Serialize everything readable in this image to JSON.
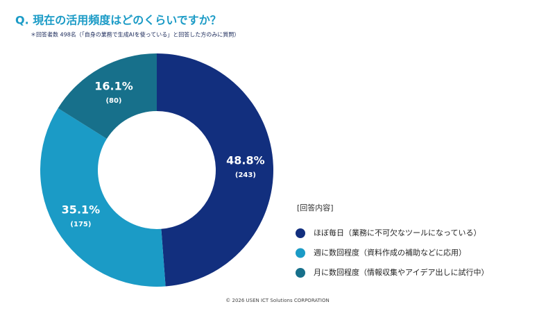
{
  "chart_data": {
    "type": "donut",
    "title": "Q. 現在の活用頻度はどのくらいですか？",
    "subtitle": "＊回答者数 498名（「自身の業務で生成AIを使っている」と回答した方のみに質問）",
    "legend_title": "[回答内容]",
    "categories": [
      "ほぼ毎日（業務に不可欠なツールになっている）",
      "週に数回程度（資料作成の補助などに応用）",
      "月に数回程度（情報収集やアイデア出しに試行中）"
    ],
    "values": [
      48.8,
      35.1,
      16.1
    ],
    "value_labels": [
      "48.8%",
      "35.1%",
      "16.1%"
    ],
    "counts": [
      243,
      175,
      80
    ],
    "count_labels": [
      "(243)",
      "(175)",
      "(80)"
    ],
    "colors": [
      "#122f7e",
      "#1b9bc6",
      "#17708b"
    ],
    "footer": "© 2026 USEN ICT Solutions CORPORATION"
  }
}
